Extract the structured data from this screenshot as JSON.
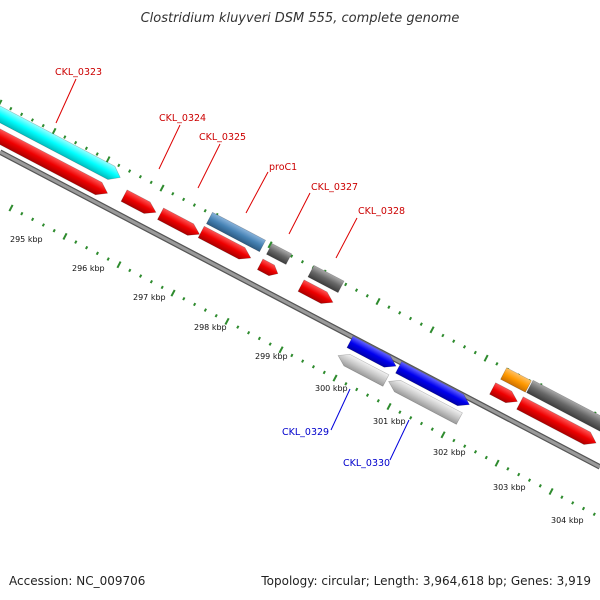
{
  "title": "Clostridium kluyveri DSM 555, complete genome",
  "footer": {
    "accession": "Accession: NC_009706",
    "summary": "Topology: circular; Length: 3,964,618 bp; Genes: 3,919"
  },
  "colors": {
    "background": "#ffffff",
    "backbone": "#808080",
    "tick": "#2e8b2e",
    "label_forward": "#cc0000",
    "label_reverse": "#0000cc",
    "cds_red": "#ee0000",
    "cds_cyan": "#00ffff",
    "cds_steelblue": "#4682b4",
    "cds_gray": "#666666",
    "cds_blue": "#0000ee",
    "cds_lightgray": "#c8c8c8",
    "cds_orange": "#ff9900"
  },
  "axis_labels": [
    "295 kbp",
    "296 kbp",
    "297 kbp",
    "298 kbp",
    "299 kbp",
    "300 kbp",
    "301 kbp",
    "302 kbp",
    "303 kbp",
    "304 kbp"
  ],
  "gene_labels": [
    {
      "text": "CKL_0323",
      "strand": "forward"
    },
    {
      "text": "CKL_0324",
      "strand": "forward"
    },
    {
      "text": "CKL_0325",
      "strand": "forward"
    },
    {
      "text": "proC1",
      "strand": "forward"
    },
    {
      "text": "CKL_0327",
      "strand": "forward"
    },
    {
      "text": "CKL_0328",
      "strand": "forward"
    },
    {
      "text": "CKL_0329",
      "strand": "reverse"
    },
    {
      "text": "CKL_0330",
      "strand": "reverse"
    }
  ]
}
